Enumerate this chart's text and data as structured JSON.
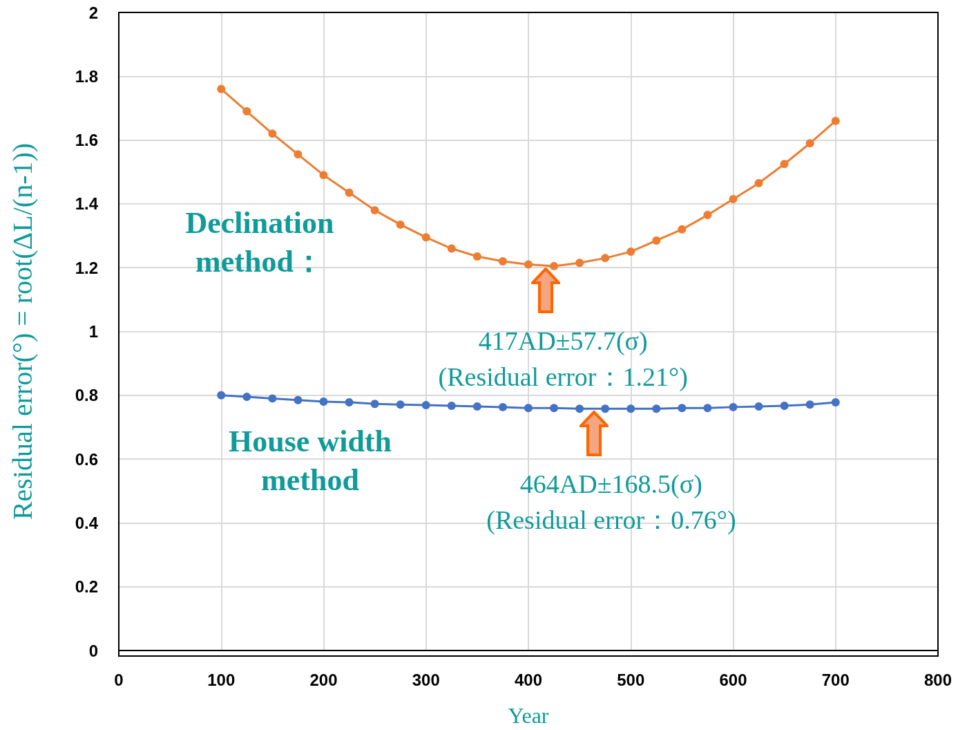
{
  "chart_data": {
    "type": "line",
    "xlabel": "Year",
    "ylabel": "Residual error(°) = root(ΔL/(n-1))",
    "x": [
      100,
      125,
      150,
      175,
      200,
      225,
      250,
      275,
      300,
      325,
      350,
      375,
      400,
      425,
      450,
      475,
      500,
      525,
      550,
      575,
      600,
      625,
      650,
      675,
      700
    ],
    "series": [
      {
        "color": "#ed7d31",
        "values": [
          1.76,
          1.69,
          1.62,
          1.555,
          1.49,
          1.435,
          1.38,
          1.335,
          1.295,
          1.26,
          1.235,
          1.22,
          1.21,
          1.205,
          1.215,
          1.23,
          1.25,
          1.285,
          1.32,
          1.365,
          1.415,
          1.465,
          1.525,
          1.59,
          1.66
        ]
      },
      {
        "color": "#4472c4",
        "values": [
          0.8,
          0.795,
          0.79,
          0.785,
          0.78,
          0.778,
          0.773,
          0.771,
          0.769,
          0.767,
          0.765,
          0.763,
          0.76,
          0.76,
          0.758,
          0.758,
          0.758,
          0.758,
          0.76,
          0.76,
          0.763,
          0.765,
          0.767,
          0.771,
          0.778
        ]
      }
    ],
    "xlim": [
      0,
      800
    ],
    "xticks": [
      0,
      100,
      200,
      300,
      400,
      500,
      600,
      700,
      800
    ],
    "ylim": [
      0,
      2
    ],
    "yticks": [
      0,
      0.2,
      0.4,
      0.6,
      0.8,
      1,
      1.2,
      1.4,
      1.6,
      1.8,
      2
    ],
    "grid": true,
    "marker": "circle",
    "line_style": "solid",
    "annotations": [
      "Declination\nmethod：",
      "House width\nmethod",
      {
        "text": "417AD±57.7(σ)\n(Residual error：1.21°)",
        "x": 417,
        "y": 1.21
      },
      {
        "text": "464AD±168.5(σ)\n(Residual error：0.76°)",
        "x": 464,
        "y": 0.76
      }
    ]
  }
}
